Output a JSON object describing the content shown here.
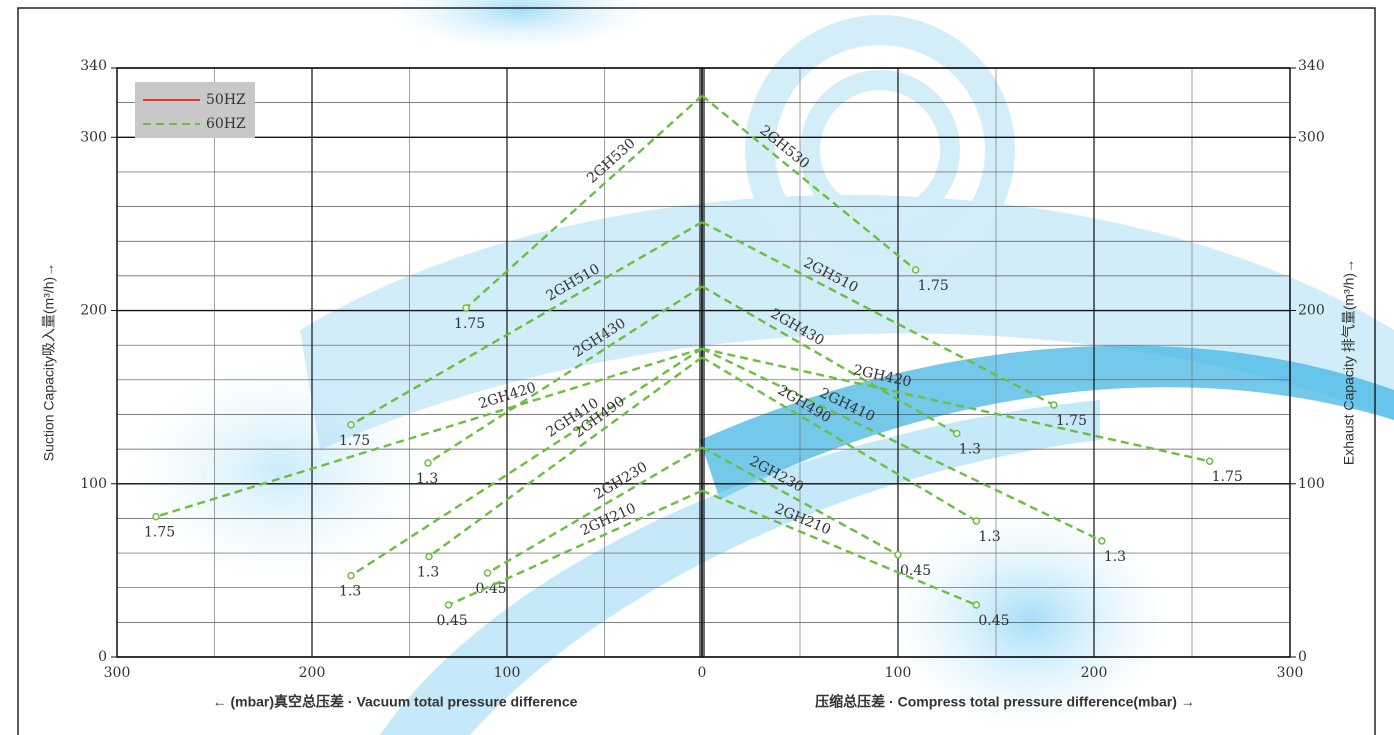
{
  "chart_data": [
    {
      "type": "line",
      "xlabel": "← (mbar)真空总压差 · Vacuum total pressure difference",
      "ylabel": "Suction Capacity吸入量(m³/h)→",
      "xlim": [
        300,
        0
      ],
      "xticks": [
        300,
        200,
        100,
        0
      ],
      "ylim": [
        0,
        340
      ],
      "yticks": [
        0,
        100,
        200,
        300,
        340
      ],
      "grid": true,
      "legend": [
        {
          "name": "50HZ",
          "color": "#e8332a",
          "style": "solid"
        },
        {
          "name": "60HZ",
          "color": "#6cbf3c",
          "style": "dashed"
        }
      ],
      "series": [
        {
          "name": "2GH530",
          "color": "#6cbf3c",
          "x": [
            0,
            121
          ],
          "values": [
            324,
            201.5
          ],
          "end_label": "1.75"
        },
        {
          "name": "2GH510",
          "color": "#6cbf3c",
          "x": [
            0,
            180
          ],
          "values": [
            251,
            134
          ],
          "end_label": "1.75"
        },
        {
          "name": "2GH430",
          "color": "#6cbf3c",
          "x": [
            0,
            140.5
          ],
          "values": [
            214,
            112
          ],
          "end_label": "1.3"
        },
        {
          "name": "2GH420",
          "color": "#6cbf3c",
          "x": [
            0,
            280
          ],
          "values": [
            178,
            81
          ],
          "end_label": "1.75"
        },
        {
          "name": "2GH410",
          "color": "#6cbf3c",
          "x": [
            0,
            180
          ],
          "values": [
            178,
            47
          ],
          "end_label": "1.3"
        },
        {
          "name": "2GH490",
          "color": "#6cbf3c",
          "x": [
            0,
            140
          ],
          "values": [
            173,
            58
          ],
          "end_label": "1.3"
        },
        {
          "name": "2GH230",
          "color": "#6cbf3c",
          "x": [
            0,
            110
          ],
          "values": [
            121,
            48.5
          ],
          "end_label": "0.45"
        },
        {
          "name": "2GH210",
          "color": "#6cbf3c",
          "x": [
            0,
            130
          ],
          "values": [
            96,
            30
          ],
          "end_label": "0.45"
        }
      ]
    },
    {
      "type": "line",
      "xlabel": "压缩总压差 · Compress total pressure difference(mbar) →",
      "ylabel": "Exhaust Capacity 排气量(m³/h)→",
      "xlim": [
        0,
        300
      ],
      "xticks": [
        100,
        200,
        300
      ],
      "ylim": [
        0,
        340
      ],
      "yticks": [
        0,
        100,
        200,
        300,
        340
      ],
      "grid": true,
      "series": [
        {
          "name": "2GH530",
          "color": "#6cbf3c",
          "x": [
            0,
            109
          ],
          "values": [
            324,
            223.5
          ],
          "end_label": "1.75"
        },
        {
          "name": "2GH510",
          "color": "#6cbf3c",
          "x": [
            0,
            179.5
          ],
          "values": [
            251,
            145.5
          ],
          "end_label": "1.75"
        },
        {
          "name": "2GH430",
          "color": "#6cbf3c",
          "x": [
            0,
            130
          ],
          "values": [
            214,
            129
          ],
          "end_label": "1.3"
        },
        {
          "name": "2GH420",
          "color": "#6cbf3c",
          "x": [
            0,
            259
          ],
          "values": [
            178,
            113
          ],
          "end_label": "1.75"
        },
        {
          "name": "2GH410",
          "color": "#6cbf3c",
          "x": [
            0,
            204
          ],
          "values": [
            178,
            67
          ],
          "end_label": "1.3"
        },
        {
          "name": "2GH490",
          "color": "#6cbf3c",
          "x": [
            0,
            140
          ],
          "values": [
            173,
            78.5
          ],
          "end_label": "1.3"
        },
        {
          "name": "2GH230",
          "color": "#6cbf3c",
          "x": [
            0,
            100
          ],
          "values": [
            121,
            59
          ],
          "end_label": "0.45"
        },
        {
          "name": "2GH210",
          "color": "#6cbf3c",
          "x": [
            0,
            140
          ],
          "values": [
            96,
            30
          ],
          "end_label": "0.45"
        }
      ]
    }
  ]
}
